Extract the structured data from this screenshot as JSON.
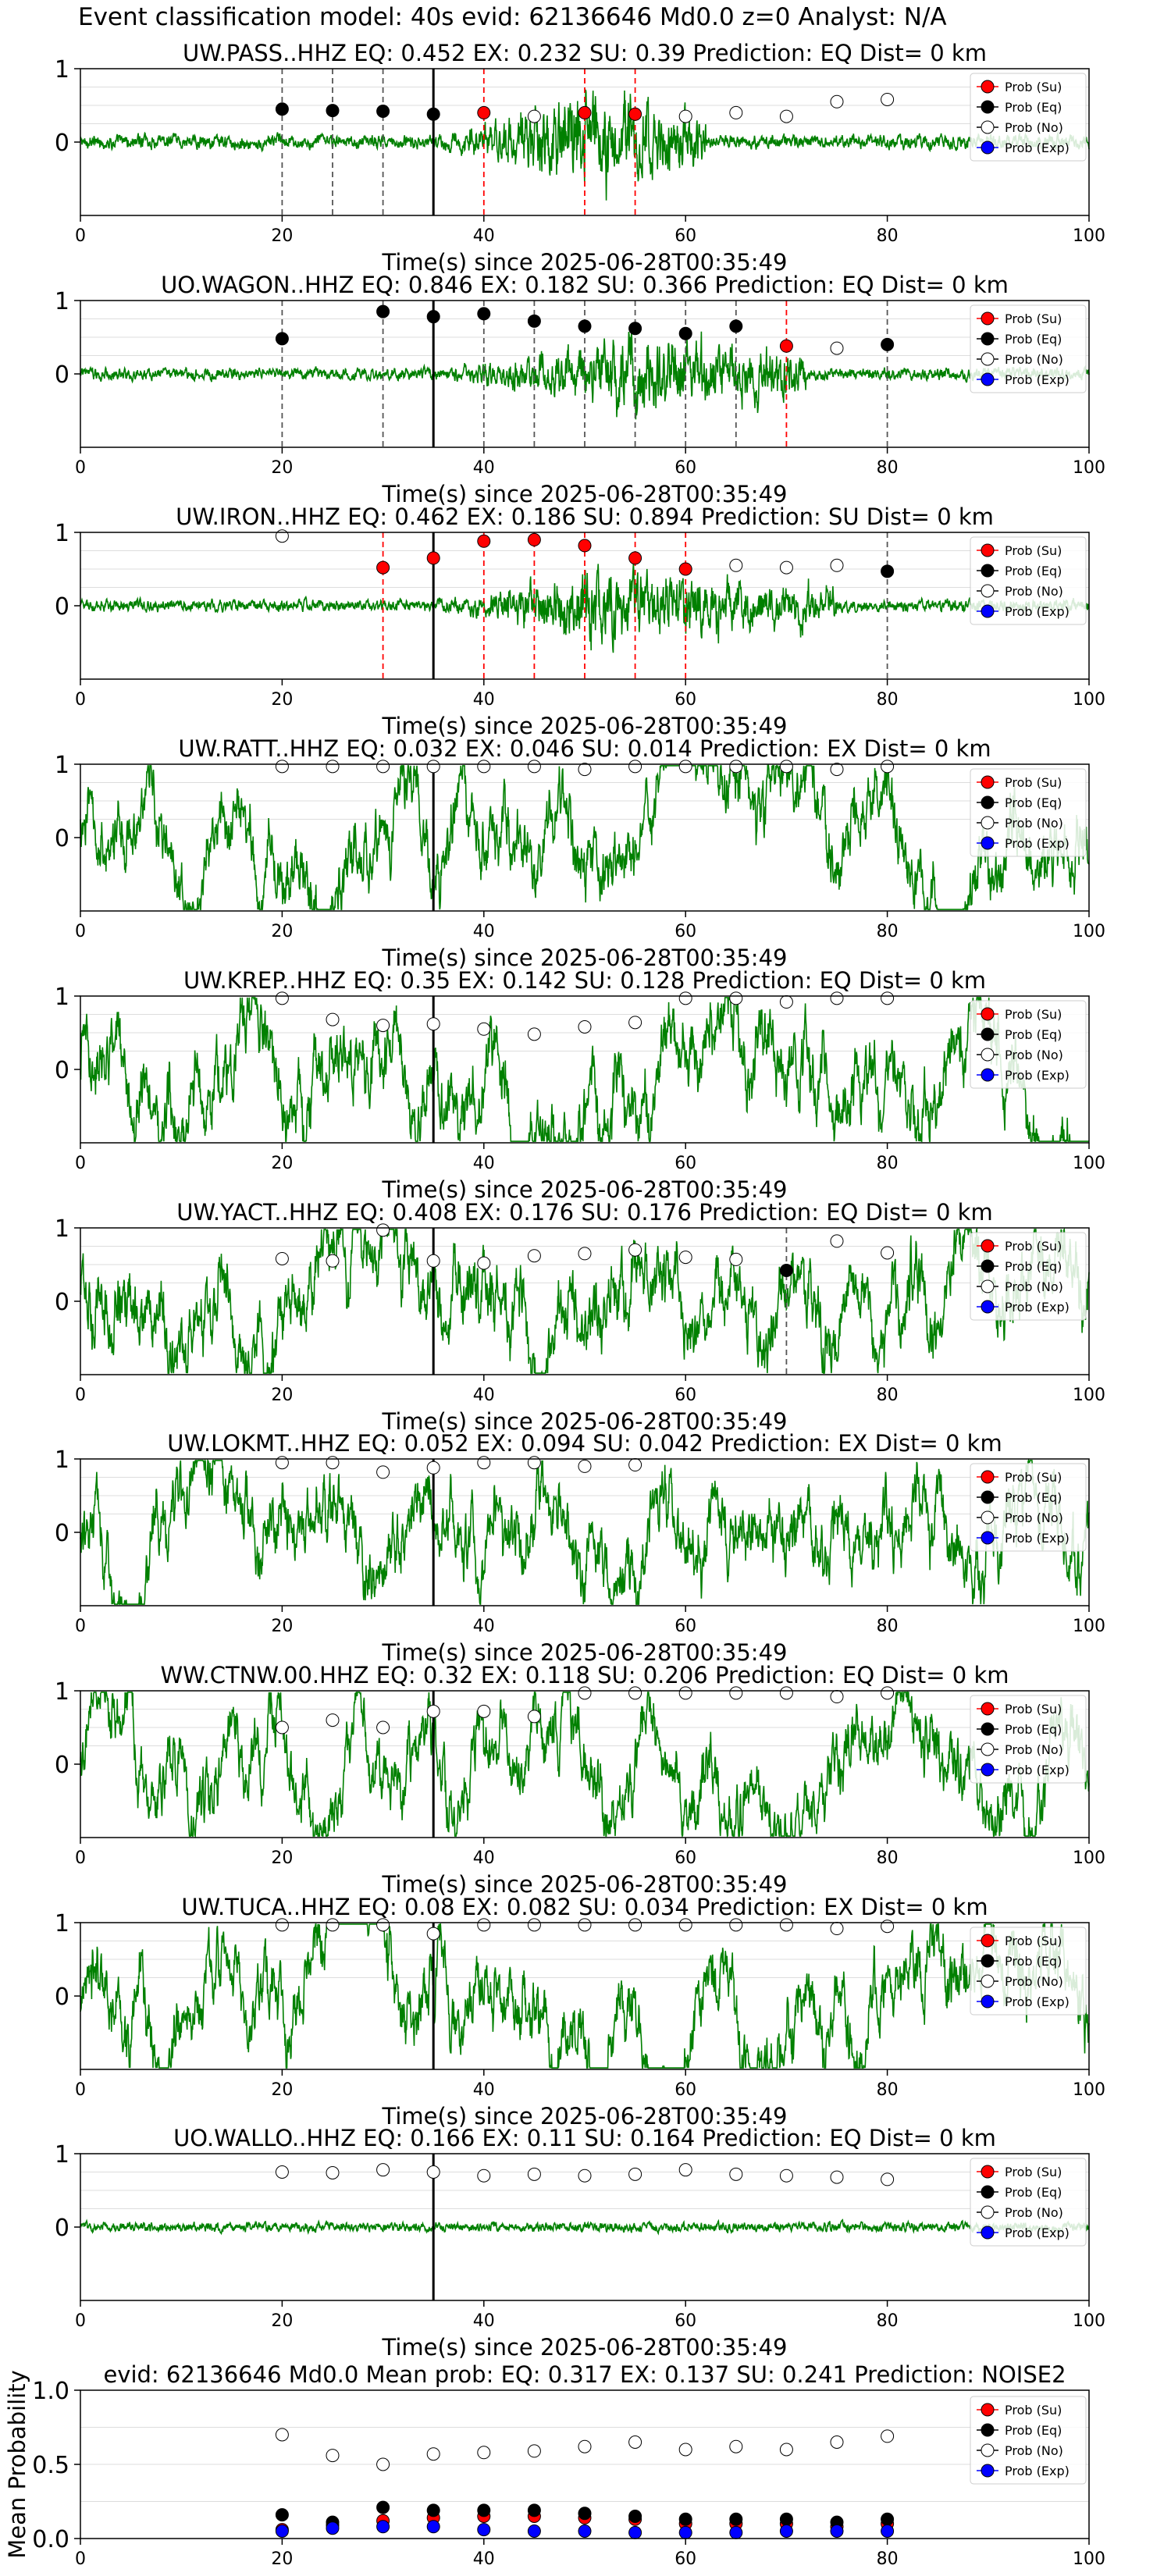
{
  "suptitle": "Event classification model: 40s evid: 62136646 Md0.0 z=0 Analyst: N/A",
  "colors": {
    "waveform": "#008000",
    "prob_su": "#ff0000",
    "prob_eq": "#000000",
    "prob_no": "#ffffff",
    "prob_exp": "#0000ff",
    "pick_line": "#000000",
    "eq_line": "#555555",
    "su_line": "#ff0000"
  },
  "legend": [
    "Prob (Su)",
    "Prob (Eq)",
    "Prob (No)",
    "Prob (Exp)"
  ],
  "chart_data": [
    {
      "type": "line",
      "title": "UW.PASS..HHZ   EQ: 0.452  EX: 0.232  SU: 0.39   Prediction: EQ    Dist= 0 km",
      "xlabel": "Time(s) since 2025-06-28T00:35:49",
      "xlim": [
        0,
        100
      ],
      "ylim": [
        -1,
        1
      ],
      "xticks": [
        0,
        20,
        40,
        60,
        80,
        100
      ],
      "yticks": [
        0,
        1
      ],
      "pick_time": 35,
      "noise_level": 0.12,
      "burst": {
        "start": 35,
        "peak": 50,
        "end": 62,
        "amp": 0.9
      },
      "prob_times": [
        20,
        25,
        30,
        35,
        40,
        45,
        50,
        55,
        60,
        65,
        70,
        75,
        80
      ],
      "prob_values": [
        0.45,
        0.43,
        0.42,
        0.38,
        0.4,
        0.35,
        0.4,
        0.38,
        0.35,
        0.4,
        0.35,
        0.55,
        0.58
      ],
      "prob_class": [
        "eq",
        "eq",
        "eq",
        "eq",
        "su",
        "no",
        "su",
        "su",
        "no",
        "no",
        "no",
        "no",
        "no"
      ],
      "vlines": [
        {
          "x": 20,
          "c": "eq"
        },
        {
          "x": 25,
          "c": "eq"
        },
        {
          "x": 30,
          "c": "eq"
        },
        {
          "x": 40,
          "c": "su"
        },
        {
          "x": 50,
          "c": "su"
        },
        {
          "x": 55,
          "c": "su"
        }
      ]
    },
    {
      "type": "line",
      "title": "UO.WAGON..HHZ   EQ: 0.846  EX: 0.182  SU: 0.366   Prediction: EQ    Dist= 0 km",
      "xlabel": "Time(s) since 2025-06-28T00:35:49",
      "xlim": [
        0,
        100
      ],
      "ylim": [
        -1,
        1
      ],
      "xticks": [
        0,
        20,
        40,
        60,
        80,
        100
      ],
      "yticks": [
        0,
        1
      ],
      "pick_time": 35,
      "noise_level": 0.1,
      "burst": {
        "start": 36,
        "peak": 55,
        "end": 72,
        "amp": 0.75
      },
      "prob_times": [
        20,
        30,
        35,
        40,
        45,
        50,
        55,
        60,
        65,
        70,
        75,
        80
      ],
      "prob_values": [
        0.48,
        0.85,
        0.78,
        0.82,
        0.72,
        0.65,
        0.62,
        0.55,
        0.65,
        0.38,
        0.35,
        0.4
      ],
      "prob_class": [
        "eq",
        "eq",
        "eq",
        "eq",
        "eq",
        "eq",
        "eq",
        "eq",
        "eq",
        "su",
        "no",
        "eq"
      ],
      "vlines": [
        {
          "x": 20,
          "c": "eq"
        },
        {
          "x": 30,
          "c": "eq"
        },
        {
          "x": 40,
          "c": "eq"
        },
        {
          "x": 45,
          "c": "eq"
        },
        {
          "x": 50,
          "c": "eq"
        },
        {
          "x": 55,
          "c": "eq"
        },
        {
          "x": 60,
          "c": "eq"
        },
        {
          "x": 65,
          "c": "eq"
        },
        {
          "x": 70,
          "c": "su"
        },
        {
          "x": 80,
          "c": "eq"
        }
      ]
    },
    {
      "type": "line",
      "title": "UW.IRON..HHZ   EQ: 0.462  EX: 0.186  SU: 0.894   Prediction: SU    Dist= 0 km",
      "xlabel": "Time(s) since 2025-06-28T00:35:49",
      "xlim": [
        0,
        100
      ],
      "ylim": [
        -1,
        1
      ],
      "xticks": [
        0,
        20,
        40,
        60,
        80,
        100
      ],
      "yticks": [
        0,
        1
      ],
      "pick_time": 35,
      "noise_level": 0.1,
      "burst": {
        "start": 35,
        "peak": 52,
        "end": 75,
        "amp": 0.7
      },
      "prob_times": [
        20,
        30,
        35,
        40,
        45,
        50,
        55,
        60,
        65,
        70,
        75,
        80
      ],
      "prob_values": [
        0.95,
        0.52,
        0.65,
        0.88,
        0.9,
        0.82,
        0.65,
        0.5,
        0.55,
        0.52,
        0.55,
        0.47
      ],
      "prob_class": [
        "no",
        "su",
        "su",
        "su",
        "su",
        "su",
        "su",
        "su",
        "no",
        "no",
        "no",
        "eq"
      ],
      "vlines": [
        {
          "x": 30,
          "c": "su"
        },
        {
          "x": 40,
          "c": "su"
        },
        {
          "x": 45,
          "c": "su"
        },
        {
          "x": 50,
          "c": "su"
        },
        {
          "x": 55,
          "c": "su"
        },
        {
          "x": 60,
          "c": "su"
        },
        {
          "x": 80,
          "c": "eq"
        }
      ]
    },
    {
      "type": "line",
      "title": "UW.RATT..HHZ   EQ: 0.032  EX: 0.046  SU: 0.014   Prediction: EX    Dist= 0 km",
      "xlabel": "Time(s) since 2025-06-28T00:35:49",
      "xlim": [
        0,
        100
      ],
      "ylim": [
        -1,
        1
      ],
      "xticks": [
        0,
        20,
        40,
        60,
        80,
        100
      ],
      "yticks": [
        0,
        1
      ],
      "pick_time": 35,
      "noise_level": 0.55,
      "burst": null,
      "prob_times": [
        20,
        25,
        30,
        35,
        40,
        45,
        50,
        55,
        60,
        65,
        70,
        75,
        80
      ],
      "prob_values": [
        0.97,
        0.97,
        0.97,
        0.97,
        0.97,
        0.97,
        0.93,
        0.97,
        0.97,
        0.97,
        0.97,
        0.93,
        0.97
      ],
      "prob_class": [
        "no",
        "no",
        "no",
        "no",
        "no",
        "no",
        "no",
        "no",
        "no",
        "no",
        "no",
        "no",
        "no"
      ],
      "vlines": []
    },
    {
      "type": "line",
      "title": "UW.KREP..HHZ   EQ: 0.35  EX: 0.142  SU: 0.128   Prediction: EQ    Dist= 0 km",
      "xlabel": "Time(s) since 2025-06-28T00:35:49",
      "xlim": [
        0,
        100
      ],
      "ylim": [
        -1,
        1
      ],
      "xticks": [
        0,
        20,
        40,
        60,
        80,
        100
      ],
      "yticks": [
        0,
        1
      ],
      "pick_time": 35,
      "noise_level": 0.6,
      "burst": null,
      "prob_times": [
        20,
        25,
        30,
        35,
        40,
        45,
        50,
        55,
        60,
        65,
        70,
        75,
        80
      ],
      "prob_values": [
        0.97,
        0.68,
        0.6,
        0.62,
        0.55,
        0.48,
        0.58,
        0.64,
        0.97,
        0.97,
        0.92,
        0.97,
        0.97
      ],
      "prob_class": [
        "no",
        "no",
        "no",
        "no",
        "no",
        "no",
        "no",
        "no",
        "no",
        "no",
        "no",
        "no",
        "no"
      ],
      "vlines": []
    },
    {
      "type": "line",
      "title": "UW.YACT..HHZ   EQ: 0.408  EX: 0.176  SU: 0.176   Prediction: EQ    Dist= 0 km",
      "xlabel": "Time(s) since 2025-06-28T00:35:49",
      "xlim": [
        0,
        100
      ],
      "ylim": [
        -1,
        1
      ],
      "xticks": [
        0,
        20,
        40,
        60,
        80,
        100
      ],
      "yticks": [
        0,
        1
      ],
      "pick_time": 35,
      "noise_level": 0.6,
      "burst": null,
      "prob_times": [
        20,
        25,
        30,
        35,
        40,
        45,
        50,
        55,
        60,
        65,
        70,
        75,
        80
      ],
      "prob_values": [
        0.58,
        0.55,
        0.97,
        0.55,
        0.52,
        0.62,
        0.65,
        0.7,
        0.6,
        0.57,
        0.42,
        0.82,
        0.66
      ],
      "prob_class": [
        "no",
        "no",
        "no",
        "no",
        "no",
        "no",
        "no",
        "no",
        "no",
        "no",
        "eq",
        "no",
        "no"
      ],
      "vlines": [
        {
          "x": 70,
          "c": "eq"
        }
      ]
    },
    {
      "type": "line",
      "title": "UW.LOKMT..HHZ   EQ: 0.052  EX: 0.094  SU: 0.042   Prediction: EX    Dist= 0 km",
      "xlabel": "Time(s) since 2025-06-28T00:35:49",
      "xlim": [
        0,
        100
      ],
      "ylim": [
        -1,
        1
      ],
      "xticks": [
        0,
        20,
        40,
        60,
        80,
        100
      ],
      "yticks": [
        0,
        1
      ],
      "pick_time": 35,
      "noise_level": 0.55,
      "burst": null,
      "prob_times": [
        20,
        25,
        30,
        35,
        40,
        45,
        50,
        55
      ],
      "prob_values": [
        0.95,
        0.95,
        0.82,
        0.88,
        0.95,
        0.95,
        0.9,
        0.92
      ],
      "prob_class": [
        "no",
        "no",
        "no",
        "no",
        "no",
        "no",
        "no",
        "no"
      ],
      "vlines": []
    },
    {
      "type": "line",
      "title": "WW.CTNW.00.HHZ   EQ: 0.32  EX: 0.118  SU: 0.206   Prediction: EQ    Dist= 0 km",
      "xlabel": "Time(s) since 2025-06-28T00:35:49",
      "xlim": [
        0,
        100
      ],
      "ylim": [
        -1,
        1
      ],
      "xticks": [
        0,
        20,
        40,
        60,
        80,
        100
      ],
      "yticks": [
        0,
        1
      ],
      "pick_time": 35,
      "noise_level": 0.5,
      "burst": null,
      "prob_times": [
        20,
        25,
        30,
        35,
        40,
        45,
        50,
        55,
        60,
        65,
        70,
        75,
        80
      ],
      "prob_values": [
        0.5,
        0.6,
        0.5,
        0.72,
        0.72,
        0.65,
        0.97,
        0.97,
        0.97,
        0.97,
        0.97,
        0.92,
        0.97
      ],
      "prob_class": [
        "no",
        "no",
        "no",
        "no",
        "no",
        "no",
        "no",
        "no",
        "no",
        "no",
        "no",
        "no",
        "no"
      ],
      "vlines": []
    },
    {
      "type": "line",
      "title": "UW.TUCA..HHZ   EQ: 0.08  EX: 0.082  SU: 0.034   Prediction: EX    Dist= 0 km",
      "xlabel": "Time(s) since 2025-06-28T00:35:49",
      "xlim": [
        0,
        100
      ],
      "ylim": [
        -1,
        1
      ],
      "xticks": [
        0,
        20,
        40,
        60,
        80,
        100
      ],
      "yticks": [
        0,
        1
      ],
      "pick_time": 35,
      "noise_level": 0.55,
      "burst": null,
      "prob_times": [
        20,
        25,
        30,
        35,
        40,
        45,
        50,
        55,
        60,
        65,
        70,
        75,
        80
      ],
      "prob_values": [
        0.97,
        0.97,
        0.97,
        0.85,
        0.97,
        0.97,
        0.97,
        0.97,
        0.97,
        0.97,
        0.97,
        0.92,
        0.95
      ],
      "prob_class": [
        "no",
        "no",
        "no",
        "no",
        "no",
        "no",
        "no",
        "no",
        "no",
        "no",
        "no",
        "no",
        "no"
      ],
      "vlines": []
    },
    {
      "type": "line",
      "title": "UO.WALLO..HHZ   EQ: 0.166  EX: 0.11  SU: 0.164   Prediction: EQ    Dist= 0 km",
      "xlabel": "Time(s) since 2025-06-28T00:35:49",
      "xlim": [
        0,
        100
      ],
      "ylim": [
        -1,
        1
      ],
      "xticks": [
        0,
        20,
        40,
        60,
        80,
        100
      ],
      "yticks": [
        0,
        1
      ],
      "pick_time": 35,
      "noise_level": 0.08,
      "burst": null,
      "prob_times": [
        20,
        25,
        30,
        35,
        40,
        45,
        50,
        55,
        60,
        65,
        70,
        75,
        80
      ],
      "prob_values": [
        0.75,
        0.74,
        0.78,
        0.75,
        0.7,
        0.72,
        0.7,
        0.72,
        0.78,
        0.72,
        0.7,
        0.68,
        0.65
      ],
      "prob_class": [
        "no",
        "no",
        "no",
        "no",
        "no",
        "no",
        "no",
        "no",
        "no",
        "no",
        "no",
        "no",
        "no"
      ],
      "vlines": []
    },
    {
      "type": "scatter",
      "title": "evid: 62136646  Md0.0   Mean prob:   EQ: 0.317  EX: 0.137  SU: 0.241   Prediction: NOISE2",
      "xlabel": "",
      "ylabel": "Mean Probability",
      "xlim": [
        0,
        100
      ],
      "ylim": [
        0,
        1
      ],
      "xticks": [
        0,
        20,
        40,
        60,
        80,
        100
      ],
      "yticks": [
        0.0,
        0.5,
        1.0
      ],
      "x": [
        20,
        25,
        30,
        35,
        40,
        45,
        50,
        55,
        60,
        65,
        70,
        75,
        80
      ],
      "series": [
        {
          "name": "Prob (Su)",
          "values": [
            0.06,
            0.09,
            0.12,
            0.14,
            0.15,
            0.15,
            0.14,
            0.13,
            0.1,
            0.1,
            0.1,
            0.08,
            0.1
          ]
        },
        {
          "name": "Prob (Eq)",
          "values": [
            0.16,
            0.11,
            0.21,
            0.19,
            0.19,
            0.19,
            0.17,
            0.15,
            0.13,
            0.13,
            0.13,
            0.11,
            0.13
          ]
        },
        {
          "name": "Prob (No)",
          "values": [
            0.7,
            0.56,
            0.5,
            0.57,
            0.58,
            0.59,
            0.62,
            0.65,
            0.6,
            0.62,
            0.6,
            0.65,
            0.69
          ]
        },
        {
          "name": "Prob (Exp)",
          "values": [
            0.05,
            0.07,
            0.08,
            0.08,
            0.06,
            0.05,
            0.05,
            0.04,
            0.04,
            0.04,
            0.05,
            0.05,
            0.05
          ]
        }
      ]
    }
  ]
}
